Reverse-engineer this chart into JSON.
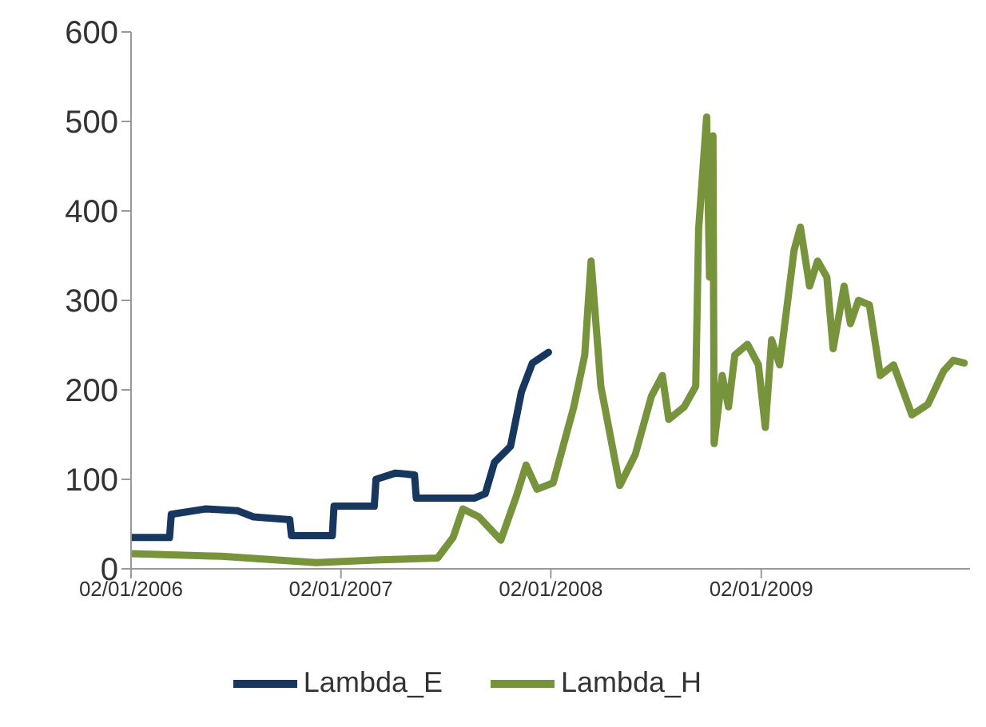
{
  "chart_data": {
    "type": "line",
    "xlim": [
      "2006-01-02",
      "2009-12-31"
    ],
    "xticks": [
      {
        "value": "2006-01-02",
        "label": "02/01/2006"
      },
      {
        "value": "2007-01-02",
        "label": "02/01/2007"
      },
      {
        "value": "2008-01-02",
        "label": "02/01/2008"
      },
      {
        "value": "2009-01-02",
        "label": "02/01/2009"
      }
    ],
    "ylim": [
      0,
      600
    ],
    "yticks": [
      0,
      100,
      200,
      300,
      400,
      500,
      600
    ],
    "grid": false,
    "legend": "bottom",
    "marker": "none",
    "line_style": "solid",
    "series": [
      {
        "name": "Lambda_H",
        "color": "#77933c",
        "x": [
          "2006-01-02",
          "2006-06-08",
          "2006-11-20",
          "2007-03-10",
          "2007-06-19",
          "2007-07-16",
          "2007-08-02",
          "2007-08-30",
          "2007-10-07",
          "2007-11-03",
          "2007-11-20",
          "2007-12-09",
          "2008-01-06",
          "2008-02-11",
          "2008-03-01",
          "2008-03-12",
          "2008-03-29",
          "2008-05-01",
          "2008-05-28",
          "2008-06-25",
          "2008-07-14",
          "2008-07-25",
          "2008-08-21",
          "2008-09-10",
          "2008-09-15",
          "2008-09-29",
          "2008-10-04",
          "2008-10-10",
          "2008-10-12",
          "2008-10-26",
          "2008-11-06",
          "2008-11-17",
          "2008-12-09",
          "2008-12-28",
          "2009-01-09",
          "2009-01-20",
          "2009-02-03",
          "2009-02-28",
          "2009-03-11",
          "2009-03-27",
          "2009-04-10",
          "2009-04-26",
          "2009-05-07",
          "2009-05-26",
          "2009-06-06",
          "2009-06-20",
          "2009-07-09",
          "2009-07-28",
          "2009-08-20",
          "2009-09-21",
          "2009-10-19",
          "2009-11-15",
          "2009-12-02",
          "2009-12-21"
        ],
        "values": [
          17,
          14,
          7,
          10,
          12,
          35,
          67,
          58,
          32,
          81,
          116,
          89,
          96,
          181,
          239,
          344,
          204,
          93,
          128,
          193,
          216,
          167,
          181,
          204,
          379,
          505,
          326,
          484,
          140,
          216,
          181,
          239,
          251,
          228,
          158,
          256,
          228,
          356,
          382,
          316,
          344,
          326,
          246,
          316,
          274,
          300,
          295,
          216,
          228,
          172,
          184,
          221,
          233,
          230
        ]
      },
      {
        "name": "Lambda_E",
        "color": "#17375e",
        "x": [
          "2006-01-02",
          "2006-03-10",
          "2006-03-13",
          "2006-05-12",
          "2006-07-06",
          "2006-08-03",
          "2006-10-05",
          "2006-10-08",
          "2006-12-18",
          "2006-12-21",
          "2007-03-01",
          "2007-03-04",
          "2007-04-07",
          "2007-05-10",
          "2007-05-13",
          "2007-08-22",
          "2007-09-10",
          "2007-09-26",
          "2007-10-24",
          "2007-11-12",
          "2007-12-01",
          "2007-12-29"
        ],
        "values": [
          35,
          35,
          61,
          67,
          65,
          58,
          55,
          37,
          37,
          70,
          70,
          100,
          107,
          105,
          79,
          79,
          84,
          119,
          137,
          198,
          230,
          242
        ]
      }
    ]
  }
}
